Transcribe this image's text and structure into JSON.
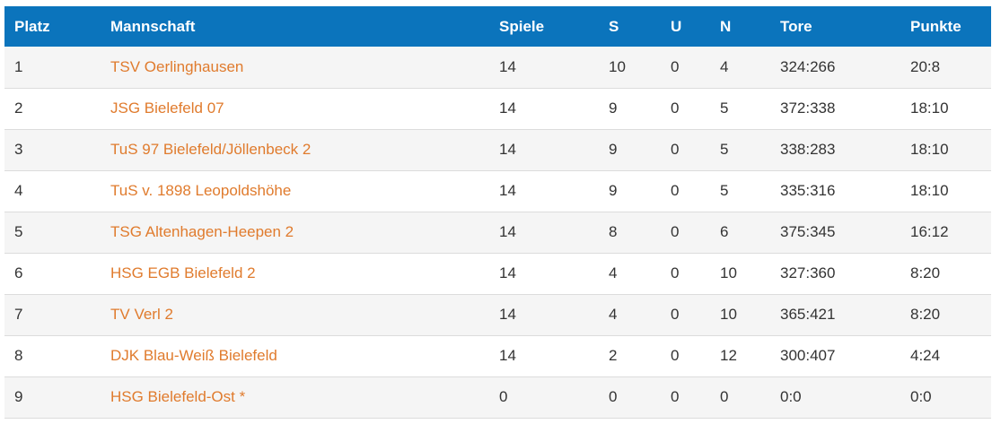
{
  "table": {
    "headers": {
      "platz": "Platz",
      "mannschaft": "Mannschaft",
      "spiele": "Spiele",
      "s": "S",
      "u": "U",
      "n": "N",
      "tore": "Tore",
      "punkte": "Punkte"
    },
    "rows": [
      {
        "platz": "1",
        "team": "TSV Oerlinghausen",
        "spiele": "14",
        "s": "10",
        "u": "0",
        "n": "4",
        "tore": "324:266",
        "punkte": "20:8"
      },
      {
        "platz": "2",
        "team": "JSG Bielefeld 07",
        "spiele": "14",
        "s": "9",
        "u": "0",
        "n": "5",
        "tore": "372:338",
        "punkte": "18:10"
      },
      {
        "platz": "3",
        "team": "TuS 97 Bielefeld/Jöllenbeck 2",
        "spiele": "14",
        "s": "9",
        "u": "0",
        "n": "5",
        "tore": "338:283",
        "punkte": "18:10"
      },
      {
        "platz": "4",
        "team": "TuS v. 1898 Leopoldshöhe",
        "spiele": "14",
        "s": "9",
        "u": "0",
        "n": "5",
        "tore": "335:316",
        "punkte": "18:10"
      },
      {
        "platz": "5",
        "team": "TSG Altenhagen-Heepen 2",
        "spiele": "14",
        "s": "8",
        "u": "0",
        "n": "6",
        "tore": "375:345",
        "punkte": "16:12"
      },
      {
        "platz": "6",
        "team": "HSG EGB Bielefeld 2",
        "spiele": "14",
        "s": "4",
        "u": "0",
        "n": "10",
        "tore": "327:360",
        "punkte": "8:20"
      },
      {
        "platz": "7",
        "team": "TV Verl 2",
        "spiele": "14",
        "s": "4",
        "u": "0",
        "n": "10",
        "tore": "365:421",
        "punkte": "8:20"
      },
      {
        "platz": "8",
        "team": "DJK Blau-Weiß Bielefeld",
        "spiele": "14",
        "s": "2",
        "u": "0",
        "n": "12",
        "tore": "300:407",
        "punkte": "4:24"
      },
      {
        "platz": "9",
        "team": "HSG Bielefeld-Ost *",
        "spiele": "0",
        "s": "0",
        "u": "0",
        "n": "0",
        "tore": "0:0",
        "punkte": "0:0"
      }
    ]
  },
  "colors": {
    "header_bg": "#0b74bc",
    "link": "#e07b2d",
    "row_alt": "#f5f5f5"
  }
}
